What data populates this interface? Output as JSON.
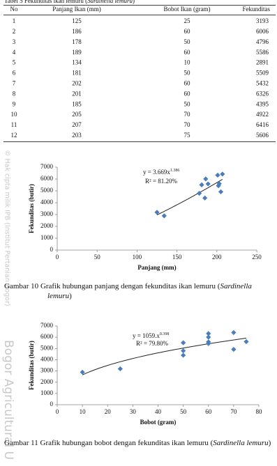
{
  "table": {
    "title": "Tabel 5 Fekunditas ikan lemuru (",
    "title_species": "Sardinella lemuru",
    "title_close": ")",
    "columns": [
      "No",
      "Panjang Ikan (mm)",
      "Bobot Ikan (gram)",
      "Fekunditas"
    ],
    "rows": [
      [
        1,
        125,
        25,
        3193
      ],
      [
        2,
        186,
        60,
        6006
      ],
      [
        3,
        178,
        50,
        4796
      ],
      [
        4,
        189,
        60,
        5586
      ],
      [
        5,
        134,
        10,
        2891
      ],
      [
        6,
        181,
        50,
        5509
      ],
      [
        7,
        202,
        60,
        5432
      ],
      [
        8,
        201,
        60,
        6326
      ],
      [
        9,
        185,
        50,
        4395
      ],
      [
        10,
        205,
        70,
        4922
      ],
      [
        11,
        207,
        70,
        6416
      ],
      [
        12,
        203,
        75,
        5606
      ]
    ]
  },
  "chart_data": [
    {
      "type": "scatter",
      "x_label": "Panjang (mm)",
      "y_label": "Fekunditas (butir)",
      "color": "#4a7ebb",
      "equation": {
        "text": "y = 3.669x",
        "exponent": "1.386"
      },
      "r_squared": "R² = 81.20%",
      "x": [
        125,
        186,
        178,
        189,
        134,
        181,
        202,
        201,
        185,
        205,
        207,
        203
      ],
      "values": [
        3193,
        6006,
        4796,
        5586,
        2891,
        5509,
        5432,
        6326,
        4395,
        4922,
        6416,
        5606
      ],
      "xlim": [
        0,
        250
      ],
      "xticks": [
        0,
        50,
        100,
        150,
        200,
        250
      ],
      "ylim": [
        0,
        7000
      ],
      "yticks": [
        0,
        1000,
        2000,
        3000,
        4000,
        5000,
        6000,
        7000
      ],
      "grid": false
    },
    {
      "type": "scatter",
      "x_label": "Bobot (gram)",
      "y_label": "Fekunditas (butir)",
      "color": "#4a7ebb",
      "equation": {
        "text": "y = 1059.x",
        "exponent": "0.398"
      },
      "r_squared": "R² = 79.80%",
      "x": [
        25,
        60,
        50,
        60,
        10,
        50,
        60,
        60,
        50,
        70,
        70,
        75
      ],
      "values": [
        3193,
        6006,
        4796,
        5586,
        2891,
        5509,
        5432,
        6326,
        4395,
        4922,
        6416,
        5606
      ],
      "xlim": [
        0,
        80
      ],
      "xticks": [
        0,
        10,
        20,
        30,
        40,
        50,
        60,
        70,
        80
      ],
      "ylim": [
        0,
        7000
      ],
      "yticks": [
        0,
        1000,
        2000,
        3000,
        4000,
        5000,
        6000,
        7000
      ],
      "grid": false
    }
  ],
  "captions": [
    {
      "label": "Gambar 10",
      "text": "Grafik hubungan panjang dengan fekunditas ikan lemuru (",
      "species": "Sardinella lemuru",
      "close": ")"
    },
    {
      "label": "Gambar 11",
      "text": "Grafik hubungan bobot dengan fekunditas ikan lemuru (",
      "species": "Sardinella lemuru",
      "close": ")"
    }
  ],
  "watermark": {
    "copyright": "© Hak cipta milik IPB (Institut Pertanian Bogor)",
    "university": "Bogor Agricultural U"
  }
}
